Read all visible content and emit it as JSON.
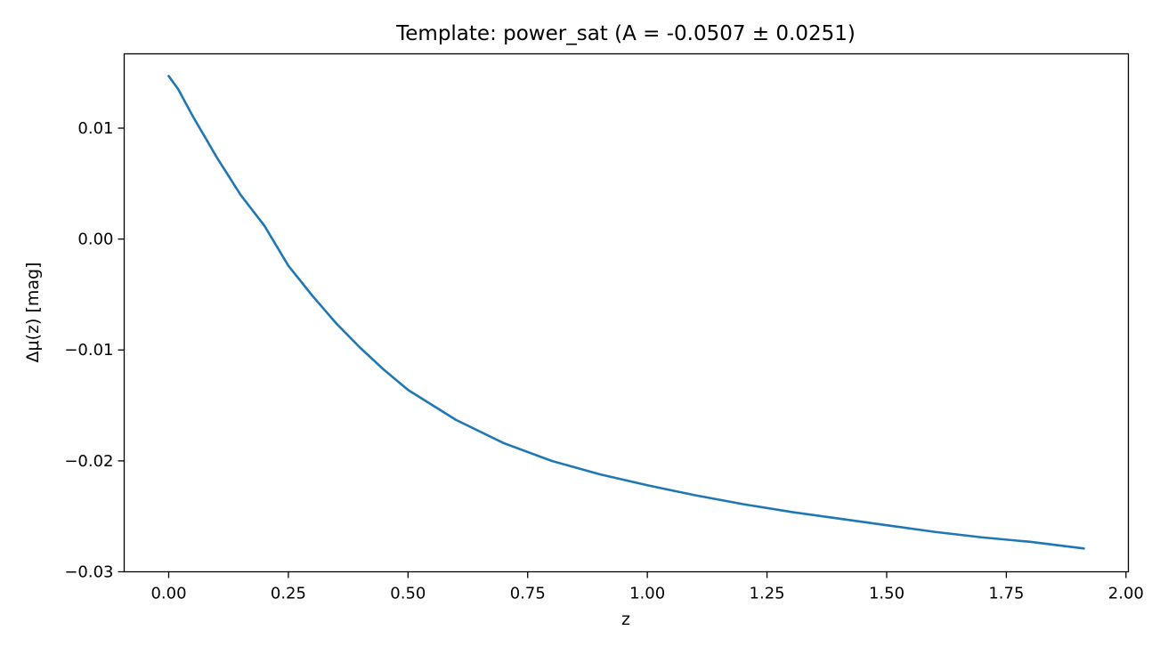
{
  "chart_data": {
    "type": "line",
    "title": "Template: power_sat  (A = -0.0507 ± 0.0251)",
    "xlabel": "z",
    "ylabel": "Δμ(z) [mag]",
    "xlim": [
      -0.093,
      2.005
    ],
    "ylim": [
      -0.03,
      0.0167
    ],
    "grid": false,
    "x_ticks": [
      0.0,
      0.25,
      0.5,
      0.75,
      1.0,
      1.25,
      1.5,
      1.75,
      2.0
    ],
    "x_tick_labels": [
      "0.00",
      "0.25",
      "0.50",
      "0.75",
      "1.00",
      "1.25",
      "1.50",
      "1.75",
      "2.00"
    ],
    "y_ticks": [
      0.01,
      0.0,
      -0.01,
      -0.02,
      -0.03
    ],
    "y_tick_labels": [
      "0.01",
      "0.00",
      "−0.01",
      "−0.02",
      "−0.03"
    ],
    "line_color": "#1f77b4",
    "series": [
      {
        "x": [
          0.0,
          0.02,
          0.05,
          0.1,
          0.15,
          0.2,
          0.25,
          0.3,
          0.35,
          0.4,
          0.45,
          0.5,
          0.6,
          0.7,
          0.8,
          0.9,
          1.0,
          1.1,
          1.2,
          1.3,
          1.4,
          1.5,
          1.6,
          1.7,
          1.8,
          1.912
        ],
        "y": [
          0.0147,
          0.0135,
          0.0111,
          0.0074,
          0.004,
          0.0012,
          -0.0024,
          -0.0051,
          -0.0076,
          -0.0098,
          -0.0118,
          -0.0136,
          -0.0163,
          -0.0184,
          -0.02,
          -0.0212,
          -0.0222,
          -0.0231,
          -0.0239,
          -0.0246,
          -0.0252,
          -0.0258,
          -0.0264,
          -0.0269,
          -0.0273,
          -0.0279
        ]
      }
    ]
  }
}
